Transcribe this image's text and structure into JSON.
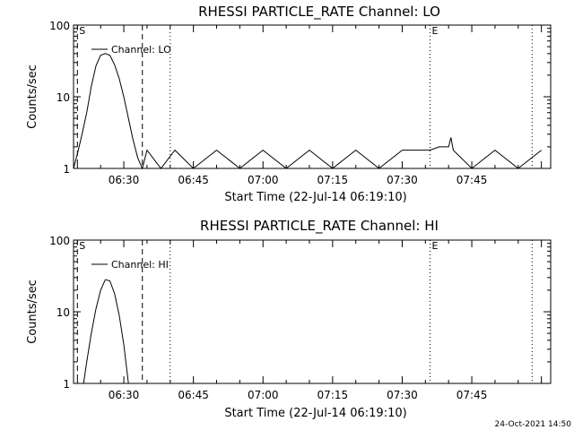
{
  "chart_data": [
    {
      "type": "line",
      "title": "RHESSI PARTICLE_RATE Channel: LO",
      "xlabel": "Start Time (22-Jul-14 06:19:10)",
      "ylabel": "Counts/sec",
      "yscale": "log",
      "ylim": [
        1,
        100
      ],
      "xlim": [
        "06:19:10",
        "08:02:00"
      ],
      "x_tick_labels": [
        "06:30",
        "06:45",
        "07:00",
        "07:15",
        "07:30",
        "07:45"
      ],
      "y_tick_labels": [
        "1",
        "10",
        "100"
      ],
      "legend": "top-left",
      "series": [
        {
          "name": "Channel: LO",
          "x": [
            "06:19:10",
            "06:20:00",
            "06:21:00",
            "06:22:00",
            "06:23:00",
            "06:24:00",
            "06:25:00",
            "06:26:00",
            "06:27:00",
            "06:28:00",
            "06:29:00",
            "06:30:00",
            "06:31:00",
            "06:32:00",
            "06:33:00",
            "06:34:00",
            "06:35:00",
            "06:38:00",
            "06:41:00",
            "06:45:00",
            "06:50:00",
            "06:55:00",
            "07:00:00",
            "07:05:00",
            "07:10:00",
            "07:15:00",
            "07:20:00",
            "07:25:00",
            "07:30:00",
            "07:33:00",
            "07:36:00",
            "07:38:00",
            "07:40:00",
            "07:40:30",
            "07:41:00",
            "07:45:00",
            "07:50:00",
            "07:55:00",
            "08:00:00"
          ],
          "y": [
            1,
            1.6,
            3,
            6,
            14,
            27,
            38,
            40,
            38,
            28,
            18,
            10,
            5,
            2.5,
            1.4,
            1,
            1.8,
            1,
            1.8,
            1,
            1.8,
            1,
            1.8,
            1,
            1.8,
            1,
            1.8,
            1,
            1.8,
            1.8,
            1.8,
            2,
            2,
            2.7,
            1.8,
            1,
            1.8,
            1,
            1.8
          ]
        }
      ],
      "markers": {
        "S": "06:20:00",
        "E": "07:36:00",
        "dashed_lines": [
          "06:20:00",
          "06:34:00"
        ],
        "dotted_lines": [
          "06:40:00",
          "07:36:00",
          "07:58:00"
        ]
      }
    },
    {
      "type": "line",
      "title": "RHESSI PARTICLE_RATE Channel: HI",
      "xlabel": "Start Time (22-Jul-14 06:19:10)",
      "ylabel": "Counts/sec",
      "yscale": "log",
      "ylim": [
        1,
        100
      ],
      "xlim": [
        "06:19:10",
        "08:02:00"
      ],
      "x_tick_labels": [
        "06:30",
        "06:45",
        "07:00",
        "07:15",
        "07:30",
        "07:45"
      ],
      "y_tick_labels": [
        "1",
        "10",
        "100"
      ],
      "legend": "top-left",
      "series": [
        {
          "name": "Channel: HI",
          "x": [
            "06:21:20",
            "06:22:00",
            "06:23:00",
            "06:24:00",
            "06:25:00",
            "06:26:00",
            "06:27:00",
            "06:28:00",
            "06:29:00",
            "06:30:00",
            "06:31:00"
          ],
          "y": [
            1,
            2,
            5,
            11,
            20,
            28,
            27,
            18,
            9,
            3.5,
            1
          ]
        }
      ],
      "markers": {
        "S": "06:20:00",
        "E": "07:36:00",
        "dashed_lines": [
          "06:20:00",
          "06:34:00"
        ],
        "dotted_lines": [
          "06:40:00",
          "07:36:00",
          "07:58:00"
        ]
      }
    }
  ],
  "footer": {
    "timestamp": "24-Oct-2021 14:50"
  },
  "marker_labels": {
    "start": "S",
    "end": "E"
  }
}
